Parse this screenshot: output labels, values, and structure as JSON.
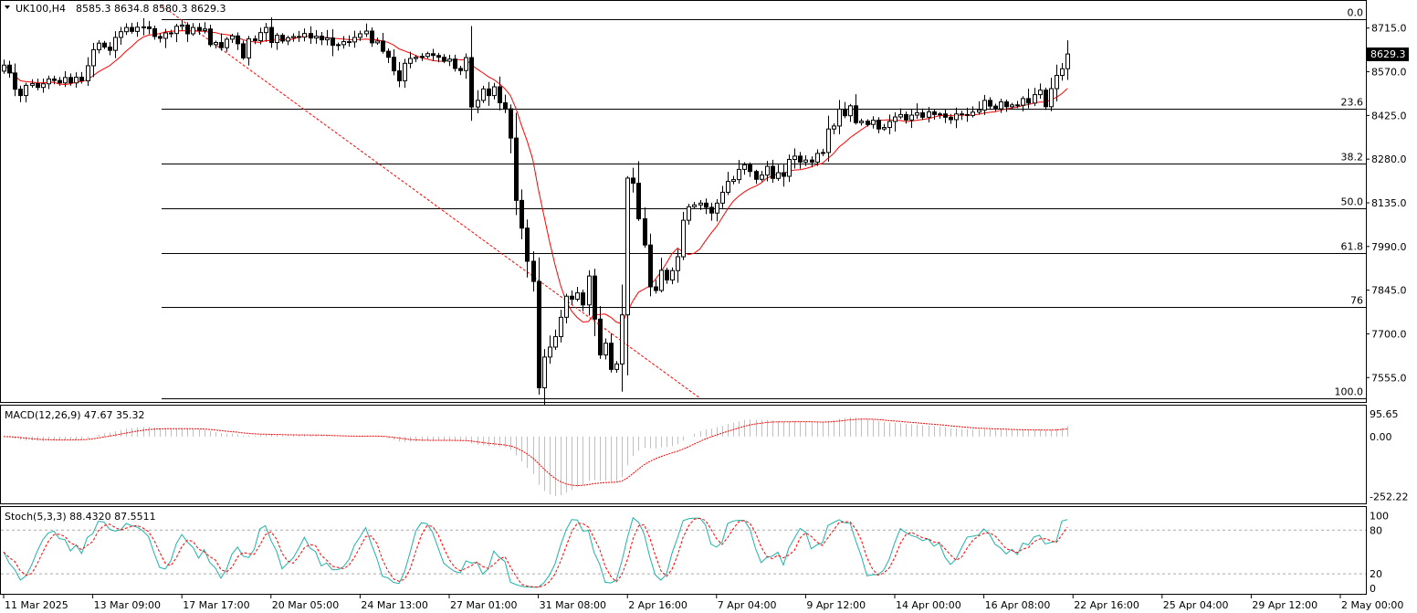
{
  "header": {
    "symbol": "UK100,H4",
    "ohlc": "8585.3 8634.8 8580.3 8629.3"
  },
  "last_price": "8629.3",
  "colors": {
    "ma": "#ff0000",
    "macd_hist": "#c0c0c0",
    "signal": "#ff0000",
    "stoch_main": "#20b2aa",
    "stoch_signal": "#ff0000",
    "fib": "#000000",
    "trend": "#ff0000"
  },
  "chart_data": [
    {
      "type": "candlestick",
      "title": "UK100,H4",
      "ylim": [
        7480,
        8790
      ],
      "price_ticks": [
        "8715.0",
        "8570.0",
        "8425.0",
        "8280.0",
        "8135.0",
        "7990.0",
        "7845.0",
        "7700.0",
        "7555.0"
      ],
      "fib_levels": [
        {
          "label": "0.0",
          "price": 8745
        },
        {
          "label": "23.6",
          "price": 8448
        },
        {
          "label": "38.2",
          "price": 8264
        },
        {
          "label": "50.0",
          "price": 8116
        },
        {
          "label": "61.8",
          "price": 7967
        },
        {
          "label": "76",
          "price": 7788
        },
        {
          "label": "100.0",
          "price": 7487
        }
      ],
      "closes": [
        8592,
        8566,
        8512,
        8491,
        8525,
        8531,
        8518,
        8530,
        8546,
        8541,
        8533,
        8551,
        8533,
        8552,
        8540,
        8590,
        8643,
        8665,
        8652,
        8641,
        8684,
        8703,
        8717,
        8704,
        8718,
        8719,
        8713,
        8687,
        8681,
        8699,
        8697,
        8721,
        8725,
        8696,
        8717,
        8707,
        8712,
        8660,
        8667,
        8650,
        8678,
        8689,
        8663,
        8616,
        8679,
        8673,
        8700,
        8717,
        8667,
        8691,
        8672,
        8683,
        8687,
        8685,
        8697,
        8682,
        8688,
        8676,
        8682,
        8658,
        8660,
        8670,
        8669,
        8684,
        8696,
        8705,
        8666,
        8672,
        8638,
        8618,
        8573,
        8540,
        8598,
        8614,
        8618,
        8621,
        8630,
        8624,
        8618,
        8605,
        8612,
        8581,
        8574,
        8617,
        8453,
        8475,
        8513,
        8491,
        8520,
        8467,
        8447,
        8350,
        8143,
        8051,
        7941,
        7874,
        7521,
        7623,
        7656,
        7691,
        7755,
        7825,
        7815,
        7836,
        7796,
        7892,
        7749,
        7630,
        7669,
        7582,
        7600,
        7763,
        8217,
        8200,
        8082,
        7995,
        7856,
        7844,
        7911,
        7879,
        7910,
        7956,
        8077,
        8122,
        8128,
        8134,
        8120,
        8101,
        8134,
        8170,
        8206,
        8212,
        8246,
        8261,
        8239,
        8213,
        8227,
        8256,
        8216,
        8235,
        8223,
        8279,
        8290,
        8270,
        8277,
        8270,
        8299,
        8302,
        8380,
        8390,
        8446,
        8424,
        8457,
        8401,
        8406,
        8395,
        8409,
        8380,
        8385,
        8405,
        8420,
        8428,
        8410,
        8426,
        8434,
        8419,
        8437,
        8428,
        8430,
        8419,
        8411,
        8430,
        8428,
        8425,
        8436,
        8443,
        8475,
        8456,
        8447,
        8470,
        8454,
        8460,
        8459,
        8481,
        8466,
        8494,
        8509,
        8454,
        8514,
        8558,
        8580,
        8629
      ]
    },
    {
      "type": "bar",
      "title": "MACD(12,26,9) 47.67 35.32",
      "ylim": [
        -270,
        115
      ],
      "ticks": [
        "95.65",
        "0.00",
        "-252.22"
      ],
      "series": [
        {
          "name": "MACD",
          "role": "histogram"
        },
        {
          "name": "Signal",
          "role": "line"
        }
      ]
    },
    {
      "type": "line",
      "title": "Stoch(5,3,3) 88.4320 87.5511",
      "ylim": [
        -5,
        108
      ],
      "ticks": [
        "100",
        "80",
        "20",
        "0"
      ],
      "levels": [
        80,
        20
      ],
      "series": [
        {
          "name": "Main"
        },
        {
          "name": "Signal"
        }
      ]
    }
  ],
  "x_axis_labels": [
    {
      "label": "11 Mar 2025",
      "index": 0
    },
    {
      "label": "13 Mar 09:00",
      "index": 16
    },
    {
      "label": "17 Mar 17:00",
      "index": 32
    },
    {
      "label": "20 Mar 05:00",
      "index": 48
    },
    {
      "label": "24 Mar 13:00",
      "index": 64
    },
    {
      "label": "27 Mar 01:00",
      "index": 80
    },
    {
      "label": "31 Mar 08:00",
      "index": 96
    },
    {
      "label": "2 Apr 16:00",
      "index": 112
    },
    {
      "label": "7 Apr 04:00",
      "index": 128
    },
    {
      "label": "9 Apr 12:00",
      "index": 144
    },
    {
      "label": "14 Apr 00:00",
      "index": 160
    },
    {
      "label": "16 Apr 08:00",
      "index": 176
    },
    {
      "label": "22 Apr 16:00",
      "index": 192
    },
    {
      "label": "25 Apr 04:00",
      "index": 208
    },
    {
      "label": "29 Apr 12:00",
      "index": 224
    },
    {
      "label": "2 May 00:00",
      "index": 240
    }
  ]
}
